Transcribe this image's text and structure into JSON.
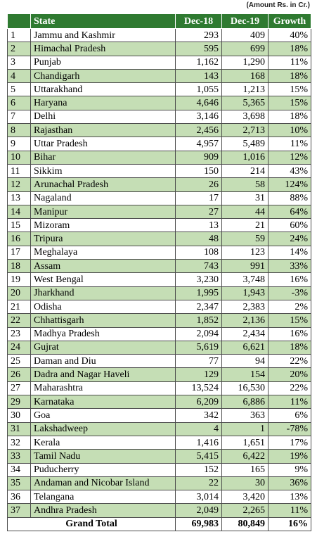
{
  "note": "(Amount Rs. in Cr.)",
  "colors": {
    "header_bg": "#2f7a31",
    "alt_row_bg": "#c5deb5"
  },
  "headers": {
    "index": "",
    "state": "State",
    "dec18": "Dec-18",
    "dec19": "Dec-19",
    "growth": "Growth"
  },
  "rows": [
    {
      "no": "1",
      "state": "Jammu and Kashmir",
      "dec18": "293",
      "dec19": "409",
      "growth": "40%"
    },
    {
      "no": "2",
      "state": "Himachal Pradesh",
      "dec18": "595",
      "dec19": "699",
      "growth": "18%"
    },
    {
      "no": "3",
      "state": "Punjab",
      "dec18": "1,162",
      "dec19": "1,290",
      "growth": "11%"
    },
    {
      "no": "4",
      "state": "Chandigarh",
      "dec18": "143",
      "dec19": "168",
      "growth": "18%"
    },
    {
      "no": "5",
      "state": "Uttarakhand",
      "dec18": "1,055",
      "dec19": "1,213",
      "growth": "15%"
    },
    {
      "no": "6",
      "state": "Haryana",
      "dec18": "4,646",
      "dec19": "5,365",
      "growth": "15%"
    },
    {
      "no": "7",
      "state": "Delhi",
      "dec18": "3,146",
      "dec19": "3,698",
      "growth": "18%"
    },
    {
      "no": "8",
      "state": "Rajasthan",
      "dec18": "2,456",
      "dec19": "2,713",
      "growth": "10%"
    },
    {
      "no": "9",
      "state": "Uttar Pradesh",
      "dec18": "4,957",
      "dec19": "5,489",
      "growth": "11%"
    },
    {
      "no": "10",
      "state": "Bihar",
      "dec18": "909",
      "dec19": "1,016",
      "growth": "12%"
    },
    {
      "no": "11",
      "state": "Sikkim",
      "dec18": "150",
      "dec19": "214",
      "growth": "43%"
    },
    {
      "no": "12",
      "state": "Arunachal Pradesh",
      "dec18": "26",
      "dec19": "58",
      "growth": "124%"
    },
    {
      "no": "13",
      "state": "Nagaland",
      "dec18": "17",
      "dec19": "31",
      "growth": "88%"
    },
    {
      "no": "14",
      "state": "Manipur",
      "dec18": "27",
      "dec19": "44",
      "growth": "64%"
    },
    {
      "no": "15",
      "state": "Mizoram",
      "dec18": "13",
      "dec19": "21",
      "growth": "60%"
    },
    {
      "no": "16",
      "state": "Tripura",
      "dec18": "48",
      "dec19": "59",
      "growth": "24%"
    },
    {
      "no": "17",
      "state": "Meghalaya",
      "dec18": "108",
      "dec19": "123",
      "growth": "14%"
    },
    {
      "no": "18",
      "state": "Assam",
      "dec18": "743",
      "dec19": "991",
      "growth": "33%"
    },
    {
      "no": "19",
      "state": "West Bengal",
      "dec18": "3,230",
      "dec19": "3,748",
      "growth": "16%"
    },
    {
      "no": "20",
      "state": "Jharkhand",
      "dec18": "1,995",
      "dec19": "1,943",
      "growth": "-3%"
    },
    {
      "no": "21",
      "state": "Odisha",
      "dec18": "2,347",
      "dec19": "2,383",
      "growth": "2%"
    },
    {
      "no": "22",
      "state": "Chhattisgarh",
      "dec18": "1,852",
      "dec19": "2,136",
      "growth": "15%"
    },
    {
      "no": "23",
      "state": "Madhya Pradesh",
      "dec18": "2,094",
      "dec19": "2,434",
      "growth": "16%"
    },
    {
      "no": "24",
      "state": "Gujrat",
      "dec18": "5,619",
      "dec19": "6,621",
      "growth": "18%"
    },
    {
      "no": "25",
      "state": "Daman and Diu",
      "dec18": "77",
      "dec19": "94",
      "growth": "22%"
    },
    {
      "no": "26",
      "state": "Dadra and Nagar Haveli",
      "dec18": "129",
      "dec19": "154",
      "growth": "20%"
    },
    {
      "no": "27",
      "state": "Maharashtra",
      "dec18": "13,524",
      "dec19": "16,530",
      "growth": "22%"
    },
    {
      "no": "29",
      "state": "Karnataka",
      "dec18": "6,209",
      "dec19": "6,886",
      "growth": "11%"
    },
    {
      "no": "30",
      "state": "Goa",
      "dec18": "342",
      "dec19": "363",
      "growth": "6%"
    },
    {
      "no": "31",
      "state": "Lakshadweep",
      "dec18": "4",
      "dec19": "1",
      "growth": "-78%"
    },
    {
      "no": "32",
      "state": "Kerala",
      "dec18": "1,416",
      "dec19": "1,651",
      "growth": "17%"
    },
    {
      "no": "33",
      "state": "Tamil Nadu",
      "dec18": "5,415",
      "dec19": "6,422",
      "growth": "19%"
    },
    {
      "no": "34",
      "state": "Puducherry",
      "dec18": "152",
      "dec19": "165",
      "growth": "9%"
    },
    {
      "no": "35",
      "state": "Andaman and Nicobar Island",
      "dec18": "22",
      "dec19": "30",
      "growth": "36%"
    },
    {
      "no": "36",
      "state": "Telangana",
      "dec18": "3,014",
      "dec19": "3,420",
      "growth": "13%"
    },
    {
      "no": "37",
      "state": "Andhra Pradesh",
      "dec18": "2,049",
      "dec19": "2,265",
      "growth": "11%"
    }
  ],
  "total": {
    "label": "Grand Total",
    "dec18": "69,983",
    "dec19": "80,849",
    "growth": "16%"
  }
}
